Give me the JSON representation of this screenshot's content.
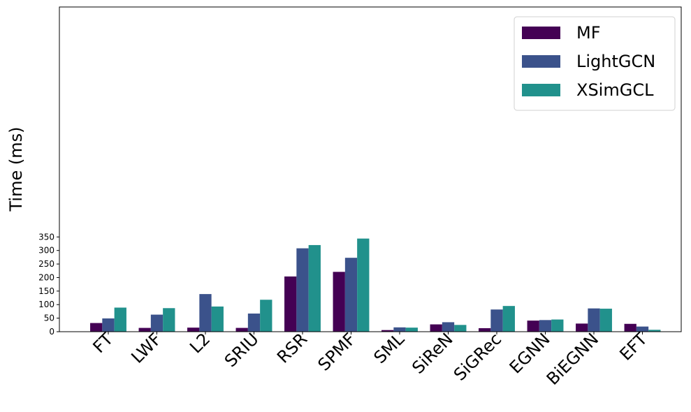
{
  "chart_data": {
    "type": "bar",
    "ylabel": "Time (ms)",
    "xlabel": "",
    "title": "",
    "ylim": [
      0,
      360
    ],
    "yticks": [
      0,
      50,
      100,
      150,
      200,
      250,
      300,
      350
    ],
    "ytick_labels": [
      "0",
      "50",
      "100",
      "150",
      "200",
      "250",
      "300",
      "350"
    ],
    "grid": false,
    "legend_position": "top-right",
    "categories": [
      "FT",
      "LWF",
      "L2",
      "SRIU",
      "RSR",
      "SPMF",
      "SML",
      "SiReN",
      "SiGRec",
      "EGNN",
      "BiEGNN",
      "EFT"
    ],
    "series": [
      {
        "name": "MF",
        "color": "#440154",
        "values": [
          32,
          14,
          15,
          14,
          204,
          221,
          6,
          27,
          13,
          41,
          30,
          29
        ]
      },
      {
        "name": "LightGCN",
        "color": "#3b528b",
        "values": [
          49,
          63,
          139,
          67,
          308,
          273,
          16,
          35,
          82,
          43,
          86,
          19
        ]
      },
      {
        "name": "XSimGCL",
        "color": "#21918c",
        "values": [
          89,
          87,
          93,
          118,
          320,
          344,
          15,
          25,
          95,
          45,
          85,
          7
        ]
      }
    ]
  }
}
